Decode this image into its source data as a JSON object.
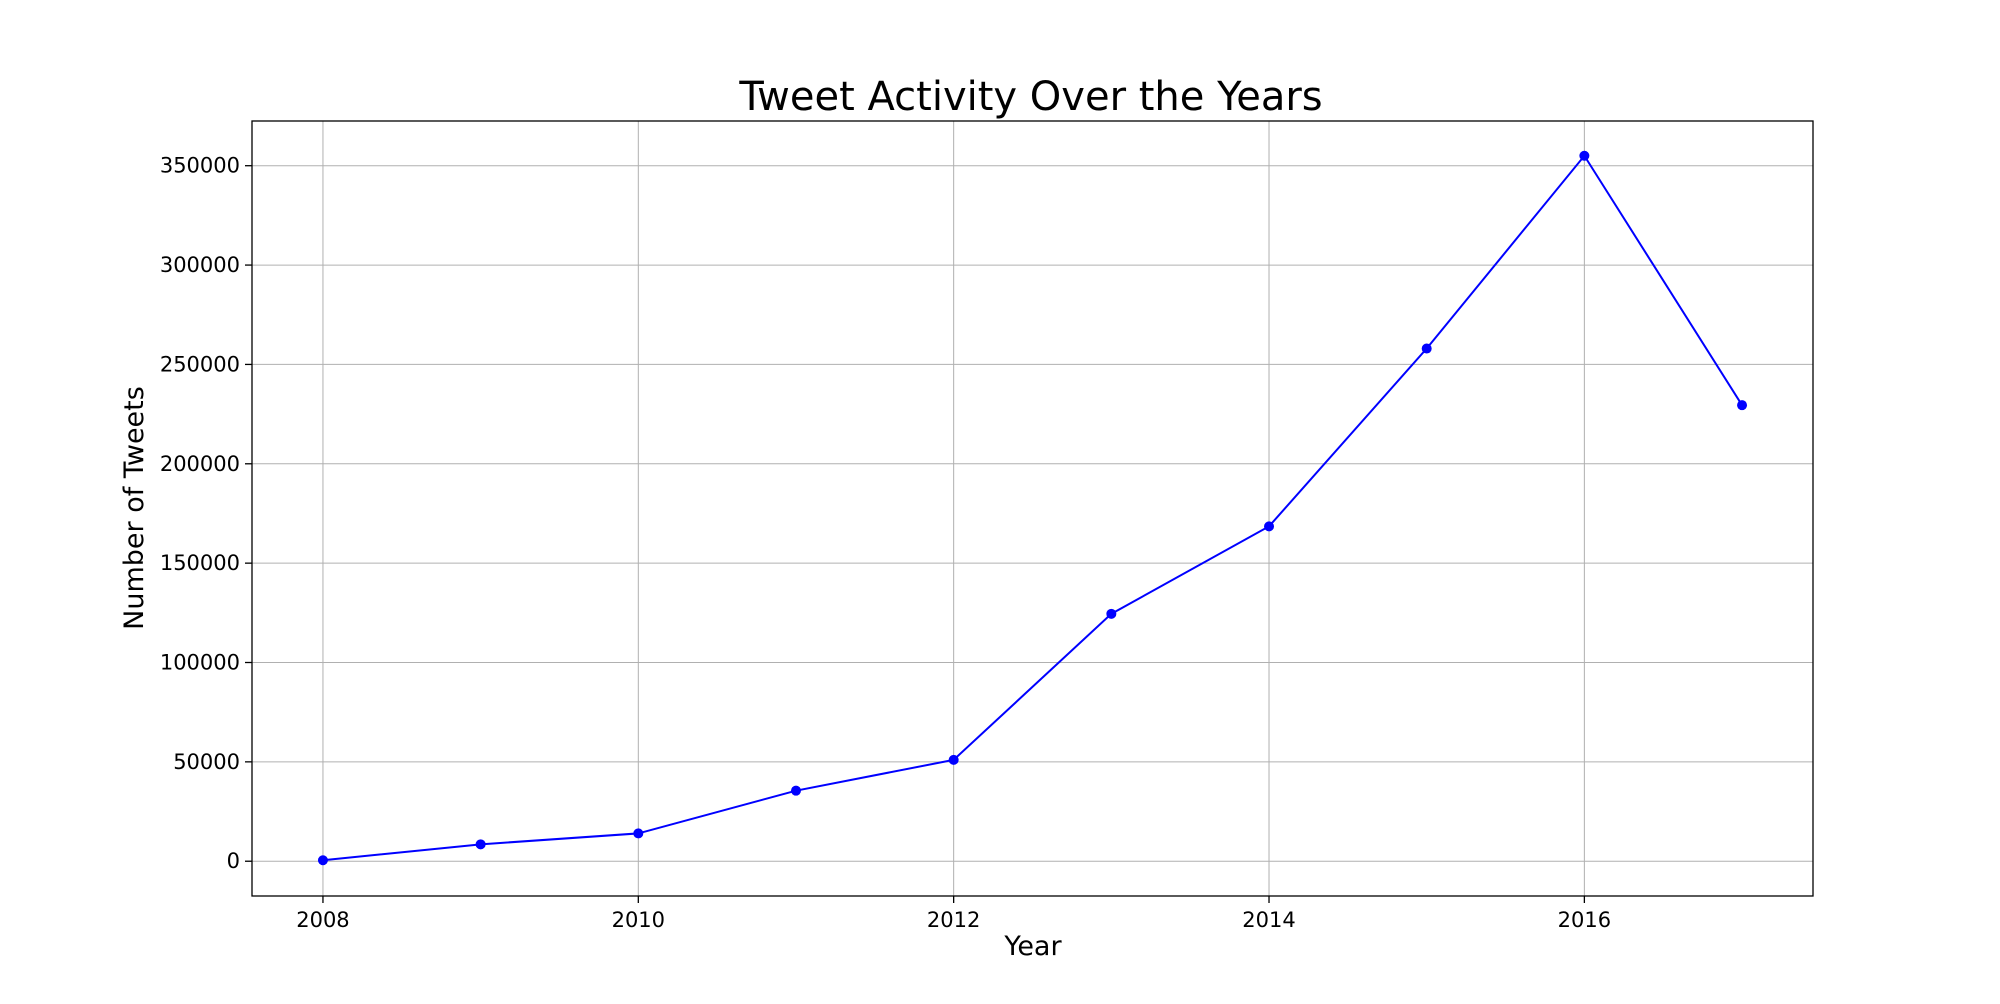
{
  "chart_data": {
    "type": "line",
    "title": "Tweet Activity Over the Years",
    "xlabel": "Year",
    "ylabel": "Number of Tweets",
    "x": [
      2008,
      2009,
      2010,
      2011,
      2012,
      2013,
      2014,
      2015,
      2016,
      2017
    ],
    "series": [
      {
        "values": [
          500,
          8500,
          14000,
          35500,
          51000,
          124500,
          168500,
          258000,
          355000,
          229500
        ],
        "color": "#0000ff",
        "marker": "circle"
      }
    ],
    "xlim": [
      2007.55,
      2017.45
    ],
    "ylim": [
      -17500,
      372500
    ],
    "xticks": [
      2008,
      2010,
      2012,
      2014,
      2016
    ],
    "yticks": [
      0,
      50000,
      100000,
      150000,
      200000,
      250000,
      300000,
      350000
    ],
    "xtick_labels": [
      "2008",
      "2010",
      "2012",
      "2014",
      "2016"
    ],
    "ytick_labels": [
      "0",
      "50000",
      "100000",
      "150000",
      "200000",
      "250000",
      "300000",
      "350000"
    ],
    "grid": true
  }
}
